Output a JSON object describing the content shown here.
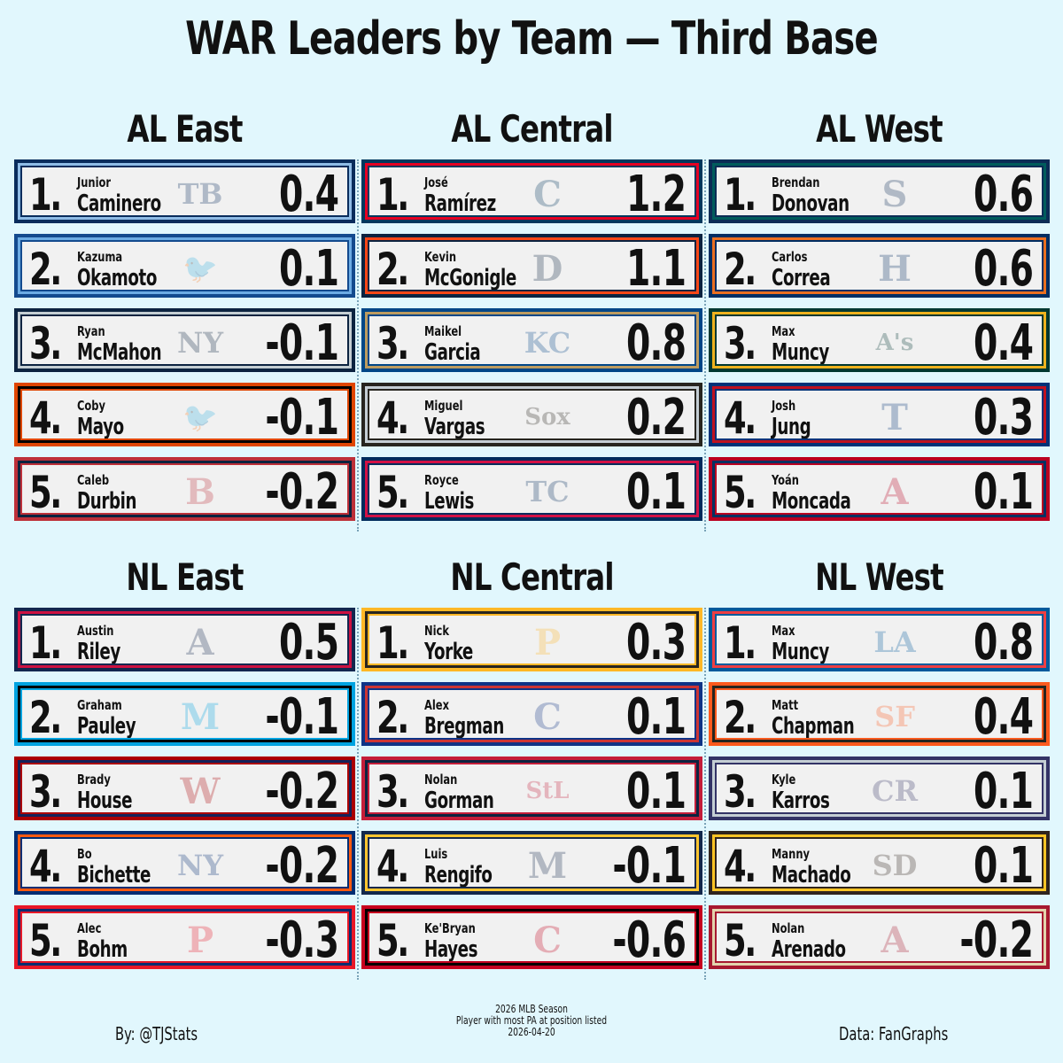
{
  "title": "WAR Leaders by Team — Third Base",
  "divisions": [
    {
      "name": "AL East",
      "players": [
        {
          "rank": "1.",
          "first": "Junior",
          "last": "Caminero",
          "war": "0.4",
          "team": "Rays",
          "logo": "TB",
          "color": "#092c5c",
          "accent": "#8fbce6"
        },
        {
          "rank": "2.",
          "first": "Kazuma",
          "last": "Okamoto",
          "war": "0.1",
          "team": "Blue Jays",
          "logo": "🐦",
          "color": "#134a8e",
          "accent": "#6cace4"
        },
        {
          "rank": "3.",
          "first": "Ryan",
          "last": "McMahon",
          "war": "-0.1",
          "team": "Yankees",
          "logo": "NY",
          "color": "#0c2340",
          "accent": "#c4ced3"
        },
        {
          "rank": "4.",
          "first": "Coby",
          "last": "Mayo",
          "war": "-0.1",
          "team": "Orioles",
          "logo": "🐦",
          "color": "#df4601",
          "accent": "#000000"
        },
        {
          "rank": "5.",
          "first": "Caleb",
          "last": "Durbin",
          "war": "-0.2",
          "team": "Red Sox",
          "logo": "B",
          "color": "#bd3039",
          "accent": "#0c2340"
        }
      ]
    },
    {
      "name": "AL Central",
      "players": [
        {
          "rank": "1.",
          "first": "José",
          "last": "Ramírez",
          "war": "1.2",
          "team": "Guardians",
          "logo": "C",
          "color": "#00385d",
          "accent": "#e50022"
        },
        {
          "rank": "2.",
          "first": "Kevin",
          "last": "McGonigle",
          "war": "1.1",
          "team": "Tigers",
          "logo": "D",
          "color": "#0c2340",
          "accent": "#fa4616"
        },
        {
          "rank": "3.",
          "first": "Maikel",
          "last": "Garcia",
          "war": "0.8",
          "team": "Royals",
          "logo": "KC",
          "color": "#004687",
          "accent": "#bd9b60"
        },
        {
          "rank": "4.",
          "first": "Miguel",
          "last": "Vargas",
          "war": "0.2",
          "team": "White Sox",
          "logo": "Sox",
          "color": "#27251f",
          "accent": "#c4ced4"
        },
        {
          "rank": "5.",
          "first": "Royce",
          "last": "Lewis",
          "war": "0.1",
          "team": "Twins",
          "logo": "TC",
          "color": "#002b5c",
          "accent": "#d31145"
        }
      ]
    },
    {
      "name": "AL West",
      "players": [
        {
          "rank": "1.",
          "first": "Brendan",
          "last": "Donovan",
          "war": "0.6",
          "team": "Mariners",
          "logo": "S",
          "color": "#0c2c56",
          "accent": "#005c5c"
        },
        {
          "rank": "2.",
          "first": "Carlos",
          "last": "Correa",
          "war": "0.6",
          "team": "Astros",
          "logo": "H",
          "color": "#002d62",
          "accent": "#eb6e1f"
        },
        {
          "rank": "3.",
          "first": "Max",
          "last": "Muncy",
          "war": "0.4",
          "team": "Athletics",
          "logo": "A's",
          "color": "#003831",
          "accent": "#efb21e"
        },
        {
          "rank": "4.",
          "first": "Josh",
          "last": "Jung",
          "war": "0.3",
          "team": "Rangers",
          "logo": "T",
          "color": "#003278",
          "accent": "#c0111f"
        },
        {
          "rank": "5.",
          "first": "Yoán",
          "last": "Moncada",
          "war": "0.1",
          "team": "Angels",
          "logo": "A",
          "color": "#ba0021",
          "accent": "#003263"
        }
      ]
    },
    {
      "name": "NL East",
      "players": [
        {
          "rank": "1.",
          "first": "Austin",
          "last": "Riley",
          "war": "0.5",
          "team": "Braves",
          "logo": "A",
          "color": "#13274f",
          "accent": "#ce1141"
        },
        {
          "rank": "2.",
          "first": "Graham",
          "last": "Pauley",
          "war": "-0.1",
          "team": "Marlins",
          "logo": "M",
          "color": "#00a3e0",
          "accent": "#000000"
        },
        {
          "rank": "3.",
          "first": "Brady",
          "last": "House",
          "war": "-0.2",
          "team": "Nationals",
          "logo": "W",
          "color": "#ab0003",
          "accent": "#14225a"
        },
        {
          "rank": "4.",
          "first": "Bo",
          "last": "Bichette",
          "war": "-0.2",
          "team": "Mets",
          "logo": "NY",
          "color": "#002d72",
          "accent": "#ff5910"
        },
        {
          "rank": "5.",
          "first": "Alec",
          "last": "Bohm",
          "war": "-0.3",
          "team": "Phillies",
          "logo": "P",
          "color": "#e81828",
          "accent": "#002d72"
        }
      ]
    },
    {
      "name": "NL Central",
      "players": [
        {
          "rank": "1.",
          "first": "Nick",
          "last": "Yorke",
          "war": "0.3",
          "team": "Pirates",
          "logo": "P",
          "color": "#fdb827",
          "accent": "#27251f"
        },
        {
          "rank": "2.",
          "first": "Alex",
          "last": "Bregman",
          "war": "0.1",
          "team": "Cubs",
          "logo": "C",
          "color": "#0e3386",
          "accent": "#cc3433"
        },
        {
          "rank": "3.",
          "first": "Nolan",
          "last": "Gorman",
          "war": "0.1",
          "team": "Cardinals",
          "logo": "StL",
          "color": "#c41e3a",
          "accent": "#0c2340"
        },
        {
          "rank": "4.",
          "first": "Luis",
          "last": "Rengifo",
          "war": "-0.1",
          "team": "Brewers",
          "logo": "M",
          "color": "#12284b",
          "accent": "#ffc52f"
        },
        {
          "rank": "5.",
          "first": "Ke'Bryan",
          "last": "Hayes",
          "war": "-0.6",
          "team": "Reds",
          "logo": "C",
          "color": "#c6011f",
          "accent": "#000000"
        }
      ]
    },
    {
      "name": "NL West",
      "players": [
        {
          "rank": "1.",
          "first": "Max",
          "last": "Muncy",
          "war": "0.8",
          "team": "Dodgers",
          "logo": "LA",
          "color": "#005a9c",
          "accent": "#ef3e42"
        },
        {
          "rank": "2.",
          "first": "Matt",
          "last": "Chapman",
          "war": "0.4",
          "team": "Giants",
          "logo": "SF",
          "color": "#fd5a1e",
          "accent": "#27251f"
        },
        {
          "rank": "3.",
          "first": "Kyle",
          "last": "Karros",
          "war": "0.1",
          "team": "Rockies",
          "logo": "CR",
          "color": "#333366",
          "accent": "#c4ced4"
        },
        {
          "rank": "4.",
          "first": "Manny",
          "last": "Machado",
          "war": "0.1",
          "team": "Padres",
          "logo": "SD",
          "color": "#2f241d",
          "accent": "#ffc425"
        },
        {
          "rank": "5.",
          "first": "Nolan",
          "last": "Arenado",
          "war": "-0.2",
          "team": "D-backs",
          "logo": "A",
          "color": "#a71930",
          "accent": "#e3d4ad"
        }
      ]
    }
  ],
  "footer": {
    "left": "By: @TJStats",
    "right": "Data: FanGraphs",
    "center": [
      "2026 MLB Season",
      "Player with most PA at position listed",
      "2026-04-20"
    ]
  }
}
